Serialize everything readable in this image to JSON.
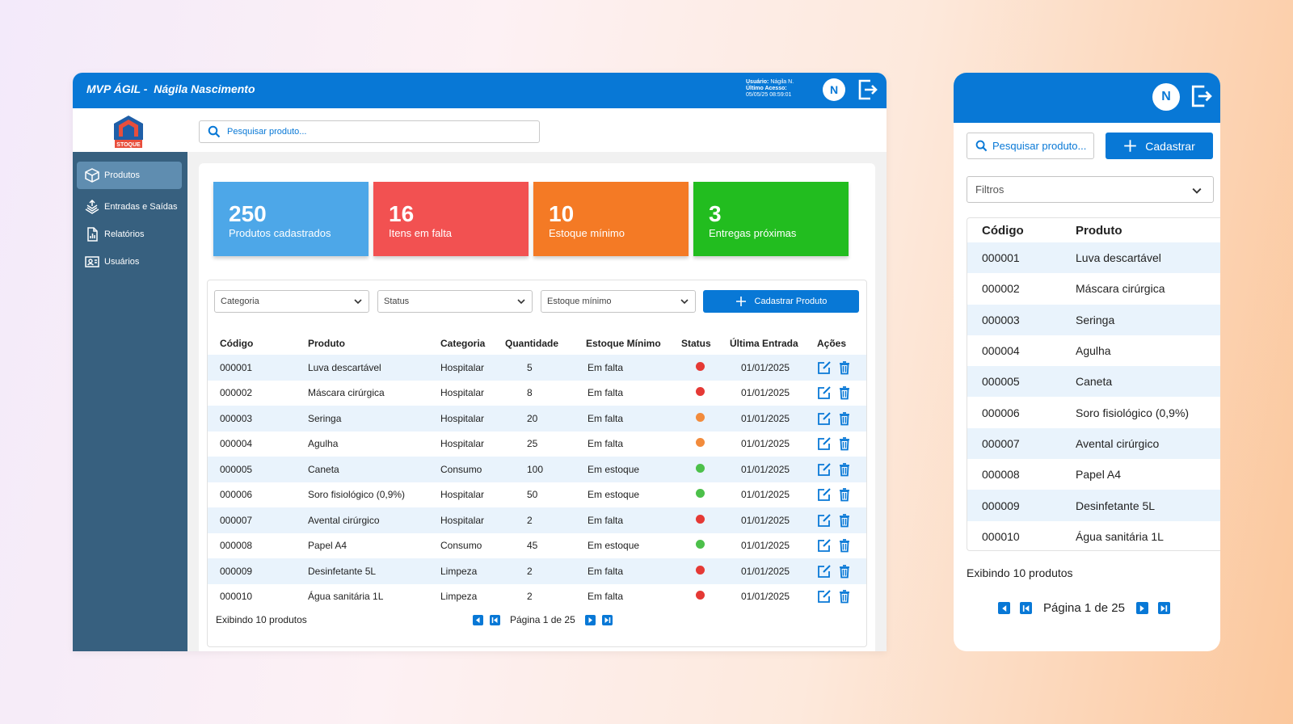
{
  "desktop": {
    "title": "MVP ÁGIL -  Nágila Nascimento",
    "user_info": {
      "usuario_label": "Usuário:",
      "usuario_value": "Nágila N.",
      "ultimo_label": "Último Acesso:",
      "ultimo_value": "05/05/25 08:59:01"
    },
    "avatar_initial": "N",
    "logo_text": "STOQUE",
    "search_placeholder": "Pesquisar produto...",
    "nav": [
      {
        "label": "Produtos",
        "icon": "box-icon",
        "active": true
      },
      {
        "label": "Entradas e Saídas",
        "icon": "exchange-icon",
        "active": false
      },
      {
        "label": "Relatórios",
        "icon": "report-icon",
        "active": false
      },
      {
        "label": "Usuários",
        "icon": "users-icon",
        "active": false
      }
    ],
    "cards": [
      {
        "value": "250",
        "label": "Produtos cadastrados",
        "color": "#4da7e8"
      },
      {
        "value": "16",
        "label": "Itens em falta",
        "color": "#f25151"
      },
      {
        "value": "10",
        "label": "Estoque mínimo",
        "color": "#f47a25"
      },
      {
        "value": "3",
        "label": "Entregas próximas",
        "color": "#22bd1f"
      }
    ],
    "filters": {
      "categoria": "Categoria",
      "status": "Status",
      "estoque_minimo": "Estoque mínimo"
    },
    "cadastrar_button": "Cadastrar Produto",
    "columns": [
      "Código",
      "Produto",
      "Categoria",
      "Quantidade",
      "Estoque Mínimo",
      "Status",
      "Última Entrada",
      "Ações"
    ],
    "rows": [
      {
        "codigo": "000001",
        "produto": "Luva descartável",
        "categoria": "Hospitalar",
        "quantidade": "5",
        "estoque": "Em falta",
        "status": "#e53935",
        "entrada": "01/01/2025"
      },
      {
        "codigo": "000002",
        "produto": "Máscara cirúrgica",
        "categoria": "Hospitalar",
        "quantidade": "8",
        "estoque": "Em falta",
        "status": "#e53935",
        "entrada": "01/01/2025"
      },
      {
        "codigo": "000003",
        "produto": "Seringa",
        "categoria": "Hospitalar",
        "quantidade": "20",
        "estoque": "Em falta",
        "status": "#f28b3c",
        "entrada": "01/01/2025"
      },
      {
        "codigo": "000004",
        "produto": "Agulha",
        "categoria": "Hospitalar",
        "quantidade": "25",
        "estoque": "Em falta",
        "status": "#f28b3c",
        "entrada": "01/01/2025"
      },
      {
        "codigo": "000005",
        "produto": "Caneta",
        "categoria": "Consumo",
        "quantidade": "100",
        "estoque": "Em estoque",
        "status": "#4cc04a",
        "entrada": "01/01/2025"
      },
      {
        "codigo": "000006",
        "produto": "Soro fisiológico (0,9%)",
        "categoria": "Hospitalar",
        "quantidade": "50",
        "estoque": "Em estoque",
        "status": "#4cc04a",
        "entrada": "01/01/2025"
      },
      {
        "codigo": "000007",
        "produto": "Avental cirúrgico",
        "categoria": "Hospitalar",
        "quantidade": "2",
        "estoque": "Em falta",
        "status": "#e53935",
        "entrada": "01/01/2025"
      },
      {
        "codigo": "000008",
        "produto": "Papel A4",
        "categoria": "Consumo",
        "quantidade": "45",
        "estoque": "Em estoque",
        "status": "#4cc04a",
        "entrada": "01/01/2025"
      },
      {
        "codigo": "000009",
        "produto": "Desinfetante 5L",
        "categoria": "Limpeza",
        "quantidade": "2",
        "estoque": "Em falta",
        "status": "#e53935",
        "entrada": "01/01/2025"
      },
      {
        "codigo": "000010",
        "produto": "Água sanitária 1L",
        "categoria": "Limpeza",
        "quantidade": "2",
        "estoque": "Em falta",
        "status": "#e53935",
        "entrada": "01/01/2025"
      }
    ],
    "footer_text": "Exibindo 10 produtos",
    "page_text": "Página 1 de 25"
  },
  "mobile": {
    "avatar_initial": "N",
    "search_placeholder": "Pesquisar produto...",
    "cadastrar_button": "Cadastrar",
    "filtros": "Filtros",
    "columns": [
      "Código",
      "Produto"
    ],
    "rows": [
      {
        "codigo": "000001",
        "produto": "Luva descartável"
      },
      {
        "codigo": "000002",
        "produto": "Máscara cirúrgica"
      },
      {
        "codigo": "000003",
        "produto": "Seringa"
      },
      {
        "codigo": "000004",
        "produto": "Agulha"
      },
      {
        "codigo": "000005",
        "produto": "Caneta"
      },
      {
        "codigo": "000006",
        "produto": "Soro fisiológico (0,9%)"
      },
      {
        "codigo": "000007",
        "produto": "Avental cirúrgico"
      },
      {
        "codigo": "000008",
        "produto": "Papel A4"
      },
      {
        "codigo": "000009",
        "produto": "Desinfetante 5L"
      },
      {
        "codigo": "000010",
        "produto": "Água sanitária 1L"
      }
    ],
    "footer_text": "Exibindo 10 produtos",
    "page_text": "Página 1 de 25"
  },
  "colors": {
    "primary": "#0878d6",
    "sidebar": "#37607f",
    "row_stripe": "#e9f3fc"
  }
}
